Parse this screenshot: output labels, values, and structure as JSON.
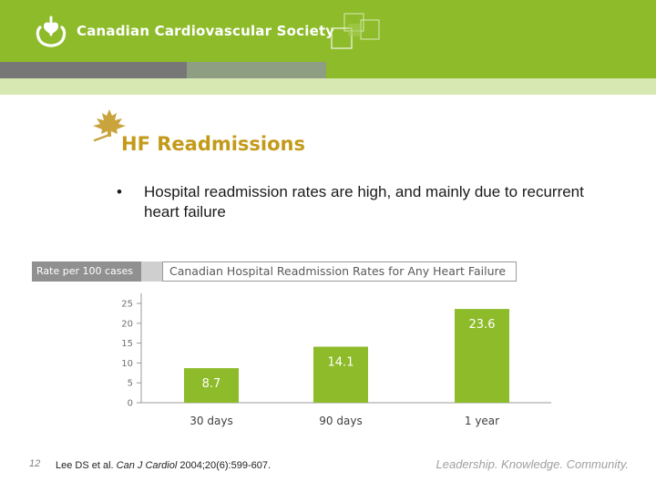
{
  "header": {
    "org_name": "Canadian Cardiovascular Society",
    "colors": {
      "green": "#8dbb2a",
      "dark_gray": "#777777",
      "sage": "#8e9e82"
    }
  },
  "slide": {
    "title": "HF Readmissions",
    "bullet_symbol": "•",
    "bullet": "Hospital readmission rates are high, and mainly due to recurrent heart failure",
    "title_color": "#c49a1a",
    "icons": [
      "heart-logo-icon",
      "maple-leaf-icon",
      "overlapping-squares-icon"
    ]
  },
  "chart_data": {
    "type": "bar",
    "title": "Canadian Hospital Readmission Rates for Any Heart Failure",
    "ylabel": "Rate per 100 cases",
    "xlabel": "",
    "categories": [
      "30 days",
      "90 days",
      "1 year"
    ],
    "values": [
      8.7,
      14.1,
      23.6
    ],
    "value_labels": [
      "8.7",
      "14.1",
      "23.6"
    ],
    "yticks": [
      0,
      5,
      10,
      15,
      20,
      25
    ],
    "ylim": [
      0,
      25
    ],
    "grid": false,
    "bar_color": "#8dbb2a"
  },
  "footer": {
    "slide_number": "12",
    "reference_prefix": "Lee DS et al. ",
    "reference_journal": "Can J Cardiol",
    "reference_suffix": " 2004;20(6):599-607.",
    "tagline": "Leadership. Knowledge. Community."
  }
}
